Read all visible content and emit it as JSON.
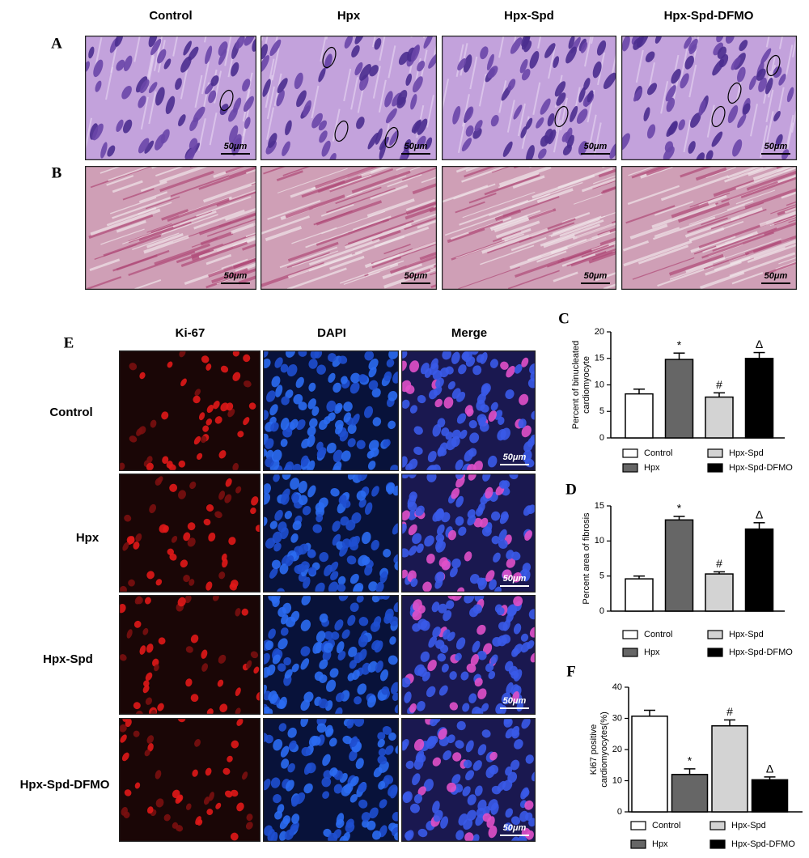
{
  "figure": {
    "group_headers": [
      "Control",
      "Hpx",
      "Hpx-Spd",
      "Hpx-Spd-DFMO"
    ],
    "panel_letters": {
      "A": "A",
      "B": "B",
      "C": "C",
      "D": "D",
      "E": "E",
      "F": "F"
    },
    "scale_bar": "50μm",
    "fluorescence_headers": [
      "Ki-67",
      "DAPI",
      "Merge"
    ],
    "fluorescence_rows": [
      "Control",
      "Hpx",
      "Hpx-Spd",
      "Hpx-Spd-DFMO"
    ]
  },
  "chart_data": [
    {
      "type": "bar",
      "ylabel": [
        "Percent of binucleated",
        "cardiomyocyte"
      ],
      "categories": [
        "Control",
        "Hpx",
        "Hpx-Spd",
        "Hpx-Spd-DFMO"
      ],
      "values": [
        8.3,
        14.8,
        7.7,
        15.0
      ],
      "errors": [
        0.9,
        1.2,
        0.8,
        1.1
      ],
      "annotations": [
        null,
        "*",
        "#",
        "Δ"
      ],
      "colors": [
        "#ffffff",
        "#666666",
        "#d3d3d3",
        "#000000"
      ],
      "ylim": [
        0,
        20
      ],
      "yticks": [
        0,
        5,
        10,
        15,
        20
      ]
    },
    {
      "type": "bar",
      "ylabel": [
        "Percent area of fibrosis"
      ],
      "categories": [
        "Control",
        "Hpx",
        "Hpx-Spd",
        "Hpx-Spd-DFMO"
      ],
      "values": [
        4.6,
        13.0,
        5.3,
        11.7
      ],
      "errors": [
        0.4,
        0.5,
        0.3,
        0.9
      ],
      "annotations": [
        null,
        "*",
        "#",
        "Δ"
      ],
      "colors": [
        "#ffffff",
        "#666666",
        "#d3d3d3",
        "#000000"
      ],
      "ylim": [
        0,
        15
      ],
      "yticks": [
        0,
        5,
        10,
        15
      ]
    },
    {
      "type": "bar",
      "ylabel": [
        "Ki67 positive",
        "cardiomyocytes(%)"
      ],
      "categories": [
        "Control",
        "Hpx",
        "Hpx-Spd",
        "Hpx-Spd-DFMO"
      ],
      "values": [
        30.7,
        12.0,
        27.6,
        10.3
      ],
      "errors": [
        1.9,
        1.8,
        1.9,
        0.9
      ],
      "annotations": [
        null,
        "*",
        "#",
        "Δ"
      ],
      "colors": [
        "#ffffff",
        "#666666",
        "#d3d3d3",
        "#000000"
      ],
      "ylim": [
        0,
        40
      ],
      "yticks": [
        0,
        10,
        20,
        30,
        40
      ]
    }
  ]
}
